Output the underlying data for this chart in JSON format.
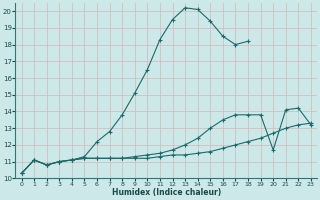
{
  "title": "",
  "xlabel": "Humidex (Indice chaleur)",
  "bg_color": "#cce8e8",
  "grid_color": "#b8d8d8",
  "line_color": "#1a6b6b",
  "xlim": [
    -0.5,
    23.5
  ],
  "ylim": [
    10,
    20.5
  ],
  "xticks": [
    0,
    1,
    2,
    3,
    4,
    5,
    6,
    7,
    8,
    9,
    10,
    11,
    12,
    13,
    14,
    15,
    16,
    17,
    18,
    19,
    20,
    21,
    22,
    23
  ],
  "yticks": [
    10,
    11,
    12,
    13,
    14,
    15,
    16,
    17,
    18,
    19,
    20
  ],
  "series": [
    {
      "x": [
        0,
        1,
        2,
        3,
        4,
        5,
        6,
        7,
        8,
        9,
        10,
        11,
        12,
        13,
        14,
        15,
        16,
        17,
        18,
        19,
        20,
        21,
        22,
        23
      ],
      "y": [
        10.3,
        11.1,
        10.8,
        11.0,
        11.1,
        11.2,
        11.2,
        11.2,
        11.2,
        11.2,
        11.2,
        11.3,
        11.4,
        11.4,
        11.5,
        11.6,
        11.8,
        12.0,
        12.2,
        12.4,
        12.7,
        13.0,
        13.2,
        13.3
      ]
    },
    {
      "x": [
        0,
        1,
        2,
        3,
        4,
        5,
        6,
        7,
        8,
        9,
        10,
        11,
        12,
        13,
        14,
        15,
        16,
        17,
        18,
        19,
        20,
        21,
        22,
        23
      ],
      "y": [
        10.3,
        11.1,
        10.8,
        11.0,
        11.1,
        11.2,
        11.2,
        11.2,
        11.2,
        11.3,
        11.4,
        11.5,
        11.7,
        12.0,
        12.4,
        13.0,
        13.5,
        13.8,
        13.8,
        13.8,
        11.7,
        14.1,
        14.2,
        13.2
      ]
    },
    {
      "x": [
        0,
        1,
        2,
        3,
        4,
        5,
        6,
        7,
        8,
        9,
        10,
        11,
        12,
        13,
        14,
        15,
        16,
        17,
        18
      ],
      "y": [
        10.3,
        11.1,
        10.8,
        11.0,
        11.1,
        11.3,
        12.2,
        12.8,
        13.8,
        15.1,
        16.5,
        18.3,
        19.5,
        20.2,
        20.1,
        19.4,
        18.5,
        18.0,
        18.2
      ]
    }
  ]
}
